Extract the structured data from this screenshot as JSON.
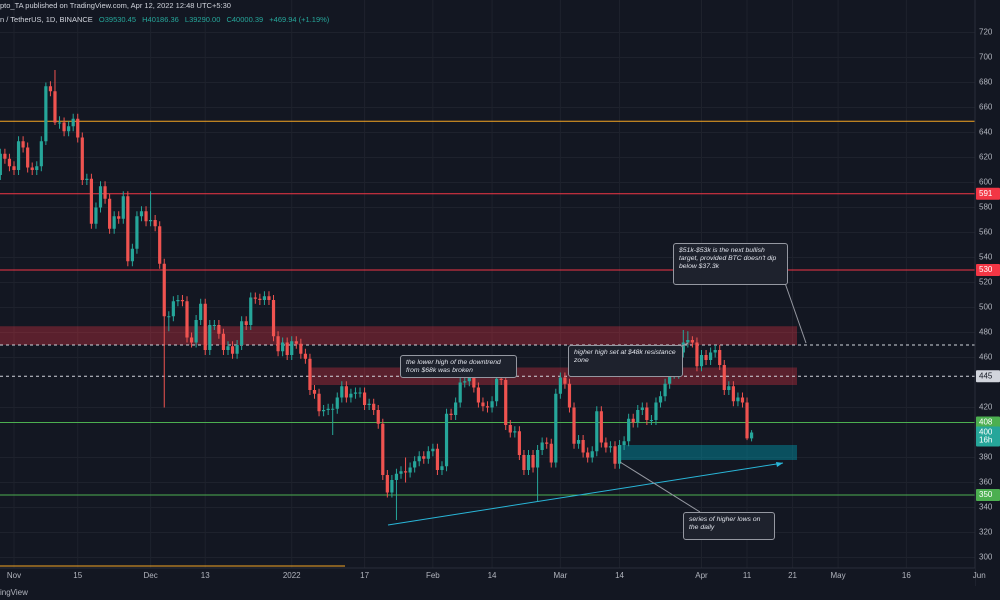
{
  "header": {
    "publisher": "pto_TA published on TradingView.com, Apr 12, 2022 12:48 UTC+5:30",
    "symbol": "n / TetherUS, 1D, BINANCE",
    "ohlc": [
      "O39530.45",
      "H40186.36",
      "L39290.00",
      "C40000.39",
      "+469.94 (+1.19%)"
    ]
  },
  "footer": {
    "brand": "ingView"
  },
  "chart_data": {
    "type": "candlestick",
    "categories": [
      null,
      null,
      null,
      "Nov",
      null,
      null,
      null,
      null,
      null,
      null,
      null,
      null,
      null,
      null,
      null,
      null,
      null,
      "15",
      null,
      null,
      null,
      null,
      null,
      null,
      null,
      null,
      null,
      null,
      null,
      null,
      null,
      null,
      null,
      "Dec",
      null,
      null,
      null,
      null,
      null,
      null,
      null,
      null,
      null,
      null,
      null,
      "13",
      null,
      null,
      null,
      null,
      null,
      null,
      null,
      null,
      null,
      null,
      null,
      null,
      null,
      null,
      null,
      null,
      null,
      null,
      "2022",
      null,
      null,
      null,
      null,
      null,
      null,
      null,
      null,
      null,
      null,
      null,
      null,
      null,
      null,
      null,
      "17",
      null,
      null,
      null,
      null,
      null,
      null,
      null,
      null,
      null,
      null,
      null,
      null,
      null,
      null,
      "Feb",
      null,
      null,
      null,
      null,
      null,
      null,
      null,
      null,
      null,
      null,
      null,
      null,
      "14",
      null,
      null,
      null,
      null,
      null,
      null,
      null,
      null,
      null,
      null,
      null,
      null,
      null,
      null,
      "Mar",
      null,
      null,
      null,
      null,
      null,
      null,
      null,
      null,
      null,
      null,
      null,
      null,
      "14",
      null,
      null,
      null,
      null,
      null,
      null,
      null,
      null,
      null,
      null,
      null,
      null,
      null,
      null,
      null,
      null,
      null,
      "Apr",
      null,
      null,
      null,
      null,
      null,
      null,
      null,
      null,
      null,
      "11",
      null,
      null,
      null,
      null,
      null,
      null,
      null,
      null,
      null,
      "21",
      null,
      null,
      null,
      null,
      null,
      null,
      null,
      null,
      null,
      "May",
      null,
      null,
      null,
      null,
      null,
      null,
      null,
      null,
      null,
      null,
      null,
      null,
      null,
      null,
      "16",
      null,
      null,
      null,
      null,
      null,
      null,
      null,
      null,
      null,
      null,
      null,
      null,
      null,
      null,
      null,
      "Jun"
    ],
    "open": [
      606,
      623,
      619,
      613,
      610,
      633,
      628,
      612,
      610,
      613,
      633,
      677,
      673,
      648,
      648,
      641,
      645,
      651,
      636,
      602,
      603,
      567,
      580,
      597,
      587,
      563,
      573,
      571,
      589,
      537,
      547,
      573,
      577,
      569,
      570,
      565,
      535,
      493,
      493,
      505,
      506,
      505,
      476,
      472,
      490,
      503,
      466,
      486,
      486,
      479,
      466,
      469,
      463,
      470,
      489,
      486,
      508,
      507,
      506,
      509,
      506,
      477,
      465,
      472,
      462,
      473,
      471,
      463,
      459,
      434,
      431,
      417,
      418,
      419,
      419,
      428,
      437,
      428,
      431,
      432,
      432,
      422,
      423,
      418,
      407,
      366,
      352,
      362,
      367,
      369,
      368,
      372,
      377,
      381,
      379,
      385,
      387,
      370,
      373,
      415,
      414,
      424,
      440,
      441,
      446,
      436,
      424,
      421,
      420,
      425,
      443,
      442,
      406,
      400,
      401,
      382,
      370,
      382,
      372,
      386,
      392,
      391,
      376,
      431,
      444,
      439,
      420,
      391,
      394,
      384,
      380,
      385,
      417,
      392,
      388,
      389,
      375,
      390,
      393,
      411,
      408,
      418,
      420,
      410,
      410,
      424,
      429,
      439,
      447,
      447,
      464,
      472,
      474,
      472,
      453,
      462,
      458,
      464,
      466,
      454,
      434,
      437,
      425,
      428,
      424,
      395.3,
      null,
      null,
      null,
      null,
      null,
      null,
      null,
      null,
      null,
      null,
      null,
      null,
      null,
      null,
      null,
      null,
      null,
      null,
      null,
      null,
      null,
      null,
      null,
      null,
      null,
      null,
      null,
      null,
      null,
      null,
      null,
      null,
      null,
      null,
      null,
      null,
      null,
      null,
      null,
      null,
      null,
      null,
      null,
      null,
      null,
      null,
      null,
      null,
      null,
      null
    ],
    "high": [
      627,
      627,
      623,
      617,
      637,
      637,
      632,
      616,
      617,
      637,
      680,
      681,
      690,
      653,
      652,
      649,
      655,
      655,
      640,
      607,
      607,
      584,
      601,
      601,
      591,
      577,
      577,
      593,
      593,
      551,
      577,
      581,
      581,
      593,
      574,
      569,
      539,
      497,
      509,
      510,
      510,
      509,
      480,
      494,
      507,
      507,
      490,
      490,
      490,
      483,
      473,
      473,
      474,
      493,
      493,
      512,
      512,
      511,
      513,
      513,
      510,
      481,
      476,
      476,
      477,
      477,
      475,
      467,
      463,
      438,
      435,
      422,
      423,
      423,
      432,
      441,
      441,
      435,
      436,
      436,
      436,
      427,
      427,
      422,
      411,
      370,
      366,
      371,
      373,
      380,
      376,
      381,
      385,
      385,
      389,
      391,
      391,
      377,
      419,
      419,
      428,
      444,
      454,
      450,
      450,
      440,
      428,
      425,
      429,
      447,
      447,
      446,
      410,
      405,
      405,
      386,
      386,
      386,
      390,
      396,
      396,
      395,
      435,
      448,
      448,
      443,
      424,
      398,
      398,
      388,
      389,
      421,
      421,
      396,
      393,
      393,
      394,
      397,
      415,
      415,
      422,
      424,
      424,
      414,
      428,
      433,
      443,
      451,
      451,
      468,
      482,
      481,
      477,
      476,
      466,
      466,
      468,
      470,
      470,
      458,
      441,
      441,
      432,
      432,
      428,
      401.9,
      null,
      null,
      null,
      null,
      null,
      null,
      null,
      null,
      null,
      null,
      null,
      null,
      null,
      null,
      null,
      null,
      null,
      null,
      null,
      null,
      null,
      null,
      null,
      null,
      null,
      null,
      null,
      null,
      null,
      null,
      null,
      null,
      null,
      null,
      null,
      null,
      null,
      null,
      null,
      null,
      null,
      null,
      null,
      null,
      null,
      null,
      null,
      null,
      null,
      null
    ],
    "low": [
      602,
      615,
      609,
      606,
      606,
      624,
      608,
      606,
      606,
      609,
      630,
      669,
      646,
      643,
      637,
      637,
      641,
      632,
      598,
      598,
      563,
      563,
      576,
      583,
      559,
      559,
      567,
      567,
      533,
      533,
      543,
      569,
      565,
      565,
      561,
      531,
      420,
      481,
      489,
      501,
      501,
      472,
      468,
      468,
      486,
      462,
      462,
      482,
      475,
      462,
      462,
      459,
      459,
      466,
      482,
      482,
      503,
      502,
      502,
      502,
      473,
      461,
      461,
      458,
      458,
      467,
      459,
      455,
      430,
      427,
      413,
      413,
      414,
      398,
      415,
      424,
      424,
      424,
      427,
      428,
      418,
      418,
      414,
      403,
      362,
      348,
      348,
      330,
      363,
      360,
      364,
      368,
      373,
      375,
      375,
      381,
      366,
      366,
      369,
      410,
      410,
      420,
      436,
      437,
      432,
      420,
      417,
      416,
      416,
      421,
      438,
      402,
      396,
      396,
      378,
      366,
      366,
      368,
      345,
      382,
      387,
      372,
      372,
      427,
      435,
      416,
      387,
      387,
      380,
      376,
      376,
      381,
      388,
      384,
      384,
      371,
      371,
      386,
      389,
      404,
      404,
      414,
      406,
      406,
      406,
      420,
      425,
      435,
      443,
      443,
      460,
      468,
      468,
      449,
      449,
      454,
      454,
      460,
      450,
      430,
      430,
      421,
      421,
      420,
      393.9,
      392.9,
      null,
      null,
      null,
      null,
      null,
      null,
      null,
      null,
      null,
      null,
      null,
      null,
      null,
      null,
      null,
      null,
      null,
      null,
      null,
      null,
      null,
      null,
      null,
      null,
      null,
      null,
      null,
      null,
      null,
      null,
      null,
      null,
      null,
      null,
      null,
      null,
      null,
      null,
      null,
      null,
      null,
      null,
      null,
      null,
      null,
      null,
      null,
      null,
      null,
      null
    ],
    "close": [
      623,
      619,
      613,
      610,
      633,
      628,
      612,
      610,
      613,
      633,
      677,
      673,
      648,
      648,
      641,
      645,
      651,
      636,
      602,
      603,
      567,
      580,
      597,
      587,
      563,
      573,
      571,
      589,
      537,
      547,
      573,
      577,
      569,
      570,
      565,
      535,
      493,
      493,
      505,
      506,
      505,
      476,
      472,
      490,
      503,
      466,
      486,
      486,
      479,
      466,
      469,
      463,
      470,
      489,
      486,
      508,
      507,
      506,
      509,
      506,
      477,
      465,
      472,
      462,
      473,
      471,
      463,
      459,
      434,
      431,
      417,
      418,
      419,
      419,
      428,
      437,
      428,
      431,
      432,
      432,
      422,
      423,
      418,
      407,
      366,
      352,
      362,
      367,
      369,
      368,
      372,
      377,
      381,
      379,
      385,
      387,
      370,
      373,
      415,
      414,
      424,
      440,
      441,
      446,
      436,
      424,
      421,
      420,
      425,
      443,
      442,
      406,
      400,
      401,
      382,
      370,
      382,
      372,
      386,
      392,
      391,
      376,
      431,
      444,
      439,
      420,
      391,
      394,
      384,
      380,
      385,
      417,
      392,
      388,
      389,
      375,
      390,
      393,
      411,
      408,
      418,
      420,
      410,
      410,
      424,
      429,
      439,
      447,
      447,
      464,
      472,
      474,
      472,
      453,
      462,
      458,
      464,
      466,
      454,
      434,
      437,
      425,
      428,
      424,
      395.3,
      400,
      null,
      null,
      null,
      null,
      null,
      null,
      null,
      null,
      null,
      null,
      null,
      null,
      null,
      null,
      null,
      null,
      null,
      null,
      null,
      null,
      null,
      null,
      null,
      null,
      null,
      null,
      null,
      null,
      null,
      null,
      null,
      null,
      null,
      null,
      null,
      null,
      null,
      null,
      null,
      null,
      null,
      null,
      null,
      null,
      null,
      null,
      null,
      null,
      null,
      null
    ],
    "colors": {
      "up": "#26a69a",
      "down": "#ef5350"
    },
    "ylim": [
      290,
      746
    ],
    "yticks": [
      720,
      700,
      680,
      660,
      640,
      620,
      600,
      580,
      560,
      540,
      520,
      500,
      480,
      460,
      420,
      380,
      360,
      340,
      320,
      300
    ],
    "grid": true,
    "levels": [
      {
        "value": 649,
        "color": "#f5a623"
      },
      {
        "value": 591,
        "color": "#f23645",
        "tag": true
      },
      {
        "value": 530,
        "color": "#f23645",
        "tag": true
      },
      {
        "value": 470,
        "color": "#d1d4dc",
        "dashed": true
      },
      {
        "value": 445,
        "color": "#d1d4dc",
        "dashed": true,
        "tag": true
      },
      {
        "value": 408,
        "color": "#4caf50",
        "tag": true
      },
      {
        "value": 350,
        "color": "#4caf50",
        "tag": true
      }
    ],
    "zones": [
      {
        "top": 485,
        "bottom": 470,
        "color": "rgba(242,54,69,0.32)"
      },
      {
        "top": 452,
        "bottom": 438,
        "color": "rgba(242,54,69,0.32)"
      },
      {
        "top": 390,
        "bottom": 378,
        "color": "rgba(0,150,170,0.45)"
      }
    ],
    "last_price": 400,
    "countdown": "16h",
    "annotations": [
      "the lower high of the downtrend from $68k was broken",
      "higher high set at $48k resistance zone",
      "$51k-$53k is the next bullish target, provided BTC doesn't dip below $37.3k",
      "series of higher lows on the daily"
    ]
  }
}
